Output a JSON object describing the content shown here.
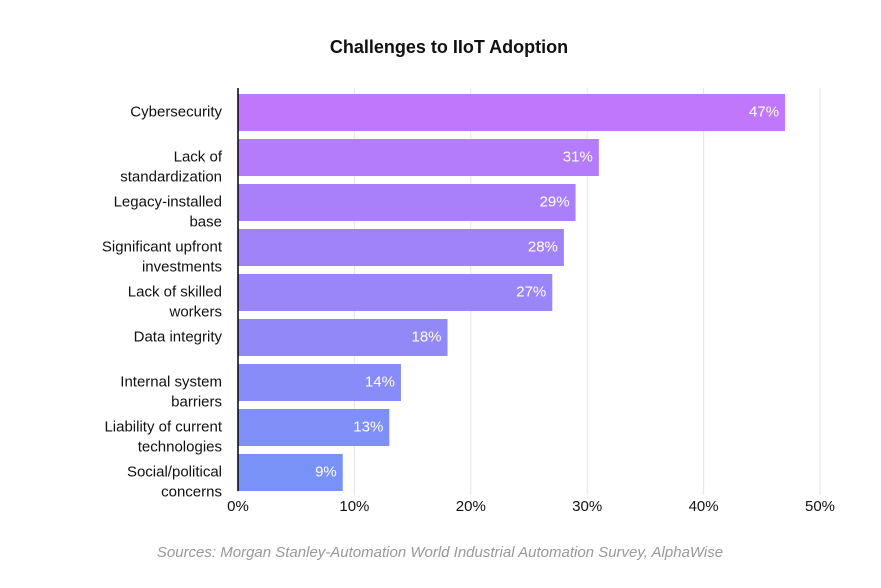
{
  "chart_data": {
    "type": "barh",
    "title": "Challenges to IIoT Adoption",
    "categories": [
      "Cybersecurity",
      "Lack of standardization",
      "Legacy-installed base",
      "Significant upfront investments",
      "Lack of skilled workers",
      "Data integrity",
      "Internal system barriers",
      "Liability of current technologies",
      "Social/political concerns"
    ],
    "values": [
      47,
      31,
      29,
      28,
      27,
      18,
      14,
      13,
      9
    ],
    "value_labels": [
      "47%",
      "31%",
      "29%",
      "28%",
      "27%",
      "18%",
      "14%",
      "13%",
      "9%"
    ],
    "colors": [
      "#c077fb",
      "#b47cfa",
      "#a980f9",
      "#a183f9",
      "#9a86f9",
      "#9189f8",
      "#878cf8",
      "#808ef8",
      "#7992f8"
    ],
    "xlim": [
      0,
      50
    ],
    "xticks": [
      {
        "value": 0,
        "label": "0%"
      },
      {
        "value": 10,
        "label": "10%"
      },
      {
        "value": 20,
        "label": "20%"
      },
      {
        "value": 30,
        "label": "30%"
      },
      {
        "value": 40,
        "label": "40%"
      },
      {
        "value": 50,
        "label": "50%"
      }
    ],
    "grid": true,
    "source": "Sources: Morgan Stanley-Automation World Industrial Automation Survey, AlphaWise"
  }
}
